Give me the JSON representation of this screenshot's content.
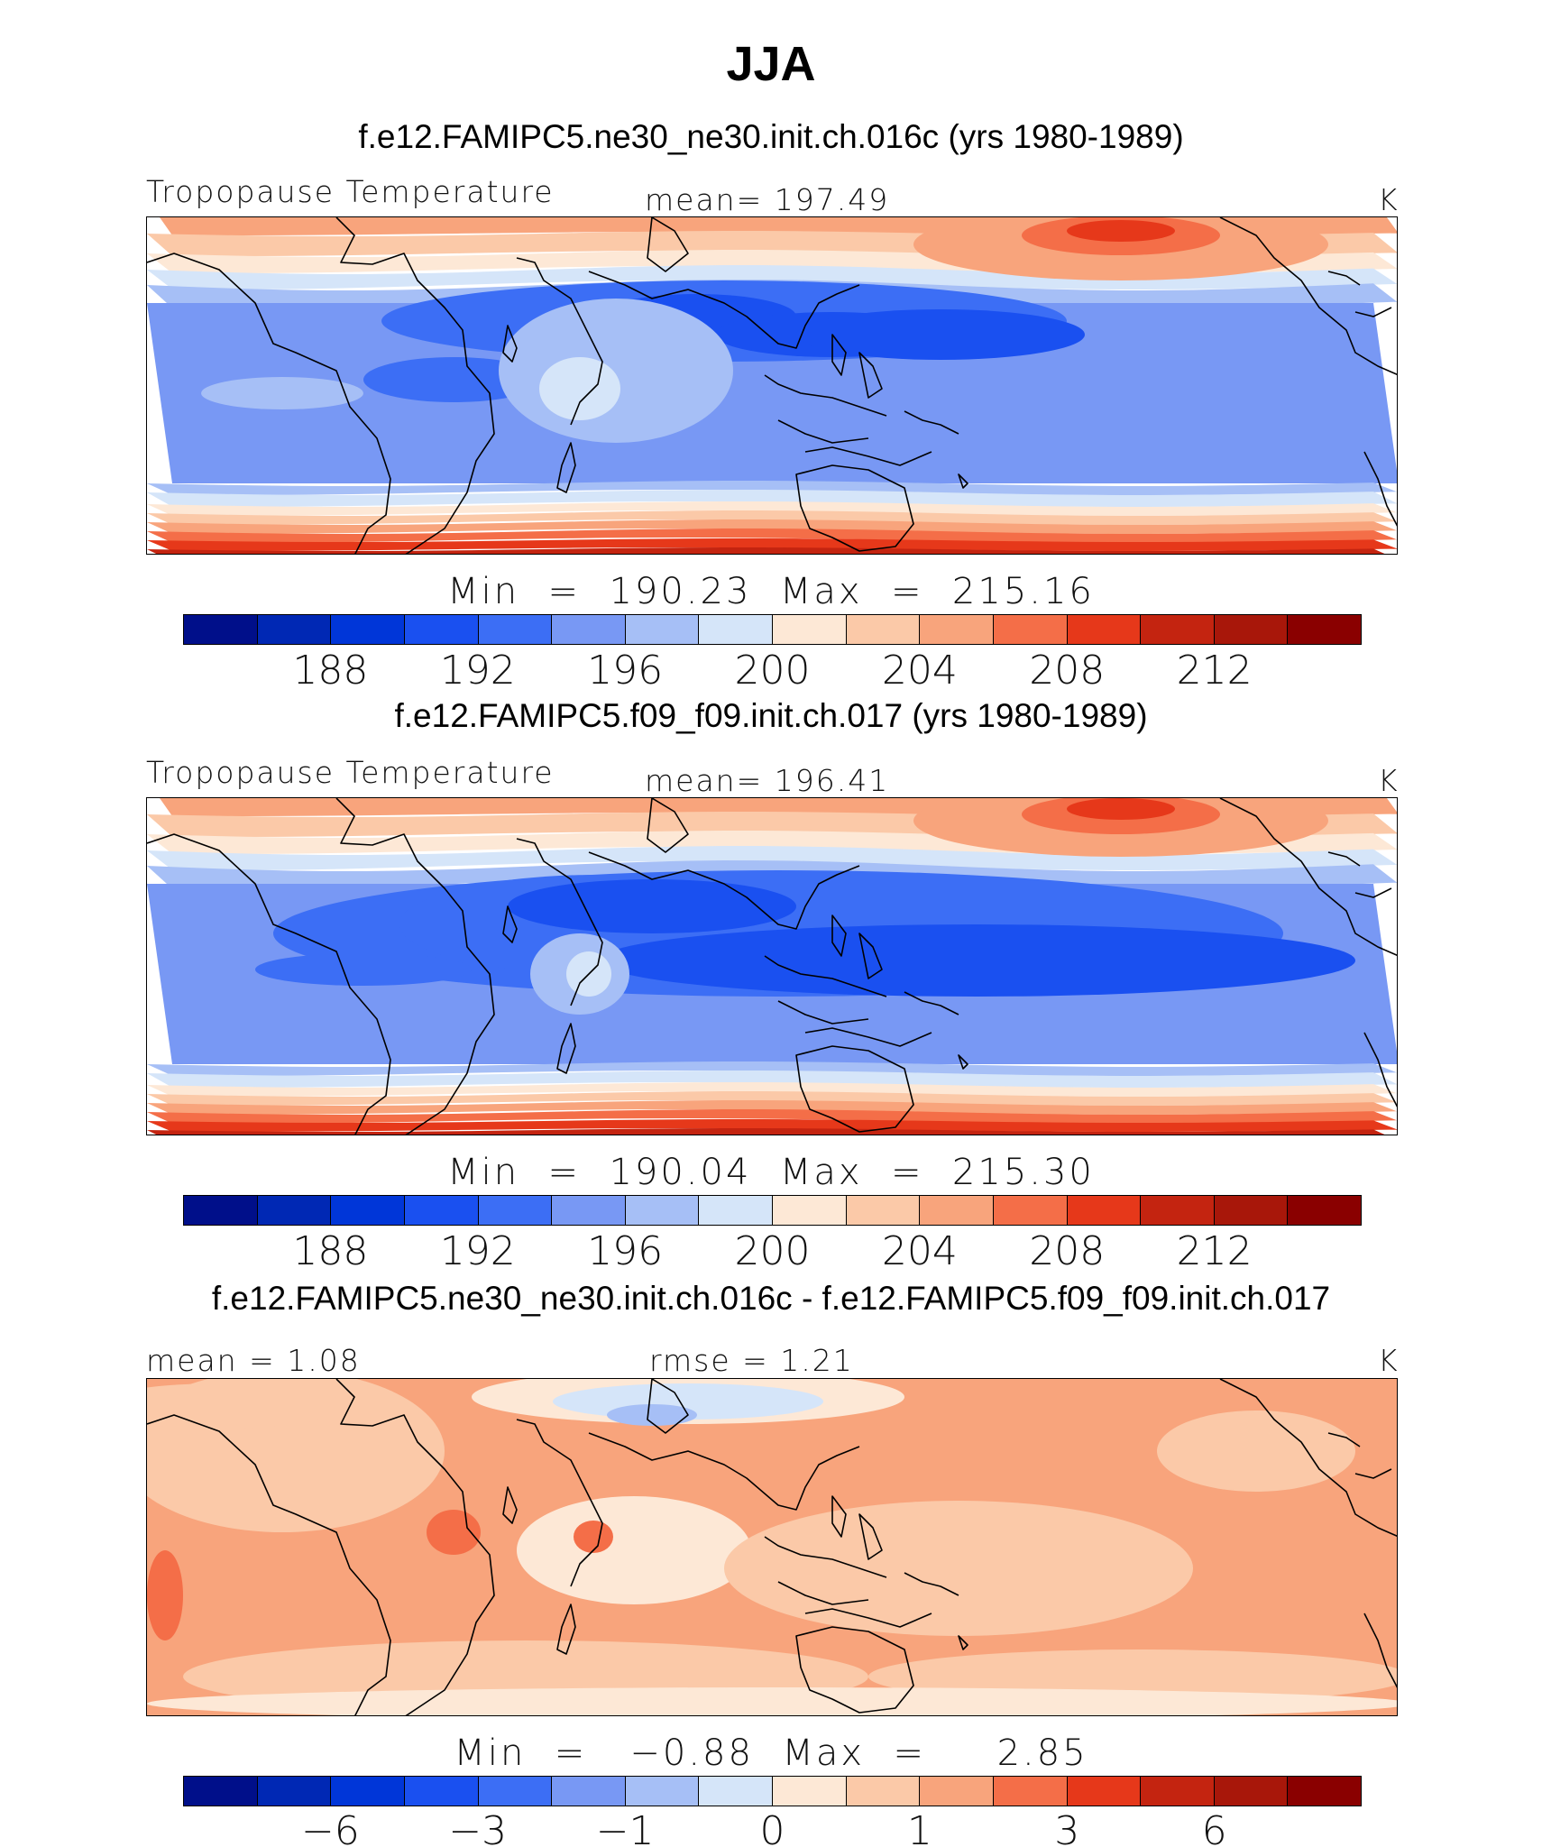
{
  "season": "JJA",
  "colors": [
    "#000f8a",
    "#0028b4",
    "#0036d8",
    "#1a50f0",
    "#3c6ef5",
    "#7898f4",
    "#a6bff6",
    "#d5e5f9",
    "#fde8d6",
    "#fbc9a8",
    "#f8a47c",
    "#f46e48",
    "#e6381a",
    "#c42410",
    "#a8170a",
    "#8a0000"
  ],
  "panels": [
    {
      "case": "f.e12.FAMIPC5.ne30_ne30.init.ch.016c (yrs 1980-1989)",
      "left_label": "Tropopause Temperature",
      "center_label": "mean=  197.49",
      "units": "K",
      "stats": "Min  =  190.23  Max  =  215.16",
      "ticks": [
        "188",
        "192",
        "196",
        "200",
        "204",
        "208",
        "212"
      ],
      "tick_positions": [
        2,
        4,
        6,
        8,
        10,
        12,
        14
      ],
      "map_type": "ctrl1"
    },
    {
      "case": "f.e12.FAMIPC5.f09_f09.init.ch.017 (yrs 1980-1989)",
      "left_label": "Tropopause Temperature",
      "center_label": "mean=  196.41",
      "units": "K",
      "stats": "Min  =  190.04  Max  =  215.30",
      "ticks": [
        "188",
        "192",
        "196",
        "200",
        "204",
        "208",
        "212"
      ],
      "tick_positions": [
        2,
        4,
        6,
        8,
        10,
        12,
        14
      ],
      "map_type": "ctrl2"
    },
    {
      "case": "f.e12.FAMIPC5.ne30_ne30.init.ch.016c - f.e12.FAMIPC5.f09_f09.init.ch.017",
      "left_label": "mean =    1.08",
      "center_label": "rmse =    1.21",
      "units": "K",
      "stats": "Min  =   −0.88  Max  =     2.85",
      "ticks": [
        "−6",
        "−3",
        "−1",
        "0",
        "1",
        "3",
        "6"
      ],
      "tick_positions": [
        2,
        4,
        6,
        8,
        10,
        12,
        14
      ],
      "map_type": "diff"
    }
  ]
}
